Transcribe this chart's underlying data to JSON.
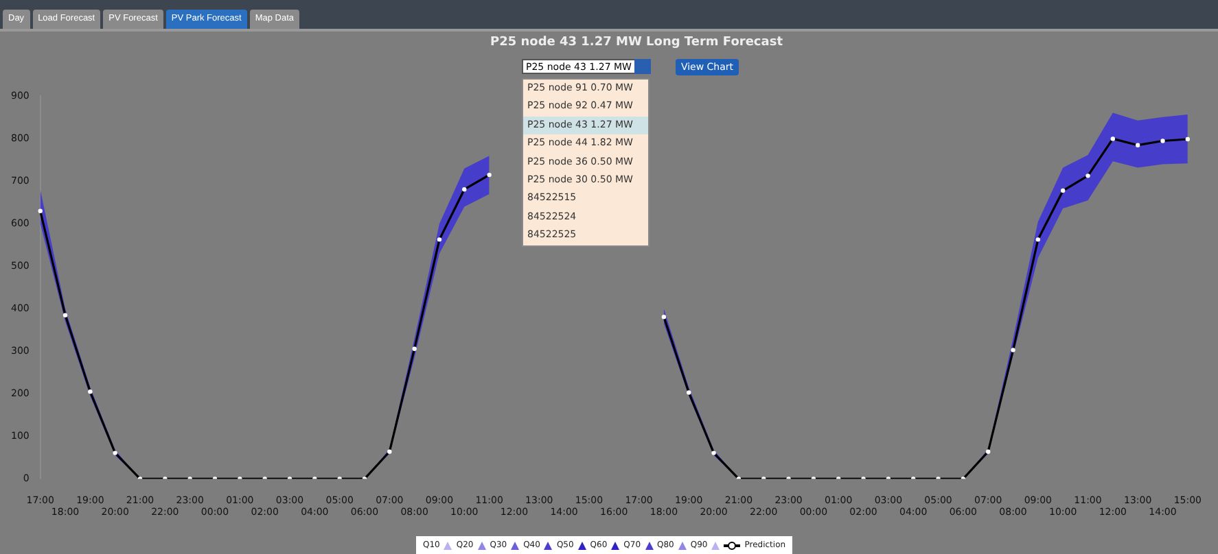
{
  "chart_data": {
    "type": "line",
    "title": "P25 node 43 1.27 MW Long Term Forecast",
    "categories": [
      "17:00",
      "18:00",
      "19:00",
      "20:00",
      "21:00",
      "22:00",
      "23:00",
      "00:00",
      "01:00",
      "02:00",
      "03:00",
      "04:00",
      "05:00",
      "06:00",
      "07:00",
      "08:00",
      "09:00",
      "10:00",
      "11:00",
      "12:00",
      "13:00",
      "14:00",
      "15:00",
      "16:00",
      "17:00",
      "18:00",
      "19:00",
      "20:00",
      "21:00",
      "22:00",
      "23:00",
      "00:00",
      "01:00",
      "02:00",
      "03:00",
      "04:00",
      "05:00",
      "06:00",
      "07:00",
      "08:00",
      "09:00",
      "10:00",
      "11:00",
      "12:00",
      "13:00",
      "14:00",
      "15:00"
    ],
    "series": [
      {
        "name": "Prediction",
        "color": "#000000",
        "values": [
          630,
          385,
          205,
          61,
          0,
          0,
          0,
          0,
          0,
          0,
          0,
          0,
          0,
          0,
          64,
          306,
          563,
          681,
          715,
          null,
          null,
          null,
          null,
          null,
          null,
          381,
          203,
          61,
          0,
          0,
          0,
          0,
          0,
          0,
          0,
          0,
          0,
          0,
          64,
          303,
          563,
          678,
          713,
          800,
          785,
          795,
          799
        ],
        "lower": [
          600,
          370,
          195,
          55,
          0,
          0,
          0,
          0,
          0,
          0,
          0,
          0,
          0,
          0,
          60,
          285,
          530,
          640,
          670,
          null,
          null,
          null,
          null,
          null,
          null,
          365,
          195,
          55,
          0,
          0,
          0,
          0,
          0,
          0,
          0,
          0,
          0,
          0,
          60,
          290,
          520,
          636,
          655,
          747,
          732,
          740,
          742
        ],
        "upper": [
          680,
          400,
          215,
          68,
          0,
          0,
          0,
          0,
          0,
          0,
          0,
          0,
          0,
          0,
          70,
          330,
          600,
          730,
          760,
          null,
          null,
          null,
          null,
          null,
          null,
          400,
          215,
          68,
          0,
          0,
          0,
          0,
          0,
          0,
          0,
          0,
          0,
          0,
          70,
          330,
          605,
          732,
          762,
          861,
          843,
          851,
          857
        ]
      }
    ],
    "ylim": [
      0,
      900
    ],
    "yticks": [
      0,
      100,
      200,
      300,
      400,
      500,
      600,
      700,
      800,
      900
    ],
    "marker": "circle",
    "line_style": "solid",
    "legend": "bottom",
    "annotations": [
      "Day",
      "Load Forecast",
      "PV Forecast",
      "PV Park Forecast",
      "Map Data",
      "P25 node 43 1.27 MW",
      "P25 node 91 0.70 MW",
      "P25 node 92 0.47 MW",
      "P25 node 43 1.27 MW",
      "P25 node 44 1.82 MW",
      "P25 node 36 0.50 MW",
      "P25 node 30 0.50 MW",
      "84522515",
      "84522524",
      "84522525",
      "View Chart",
      "Q10",
      "Q20",
      "Q30",
      "Q40",
      "Q50",
      "Q60",
      "Q70",
      "Q80",
      "Q90"
    ]
  }
}
